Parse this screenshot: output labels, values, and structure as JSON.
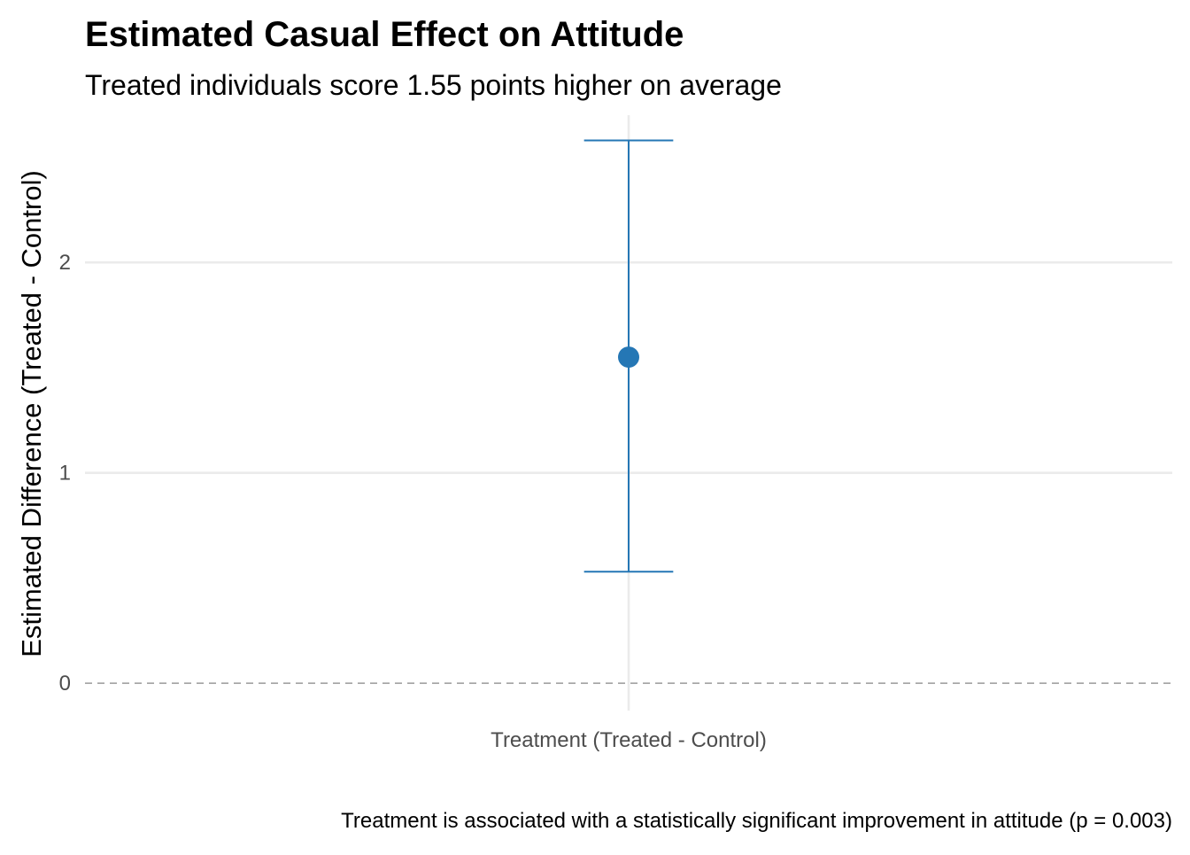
{
  "chart_data": {
    "type": "errorbar",
    "title": "Estimated Casual Effect on Attitude",
    "subtitle": "Treated individuals score 1.55 points higher on average",
    "xlabel": "",
    "ylabel": "Estimated Difference (Treated - Control)",
    "caption": "Treatment is associated with a statistically significant improvement in attitude (p = 0.003)",
    "categories": [
      "Treatment (Treated - Control)"
    ],
    "points": [
      {
        "category": "Treatment (Treated - Control)",
        "estimate": 1.55,
        "lower": 0.53,
        "upper": 2.58
      }
    ],
    "yticks": [
      0,
      1,
      2
    ],
    "ytick_labels": [
      "0",
      "1",
      "2"
    ],
    "ylim": [
      -0.13,
      2.7
    ],
    "reference_line": {
      "y": 0,
      "style": "dashed"
    },
    "grid": true,
    "legend": "none",
    "colors": {
      "point": "#2577b5",
      "errorbar": "#2577b5",
      "grid": "#ebebeb",
      "reference": "#999999"
    }
  }
}
